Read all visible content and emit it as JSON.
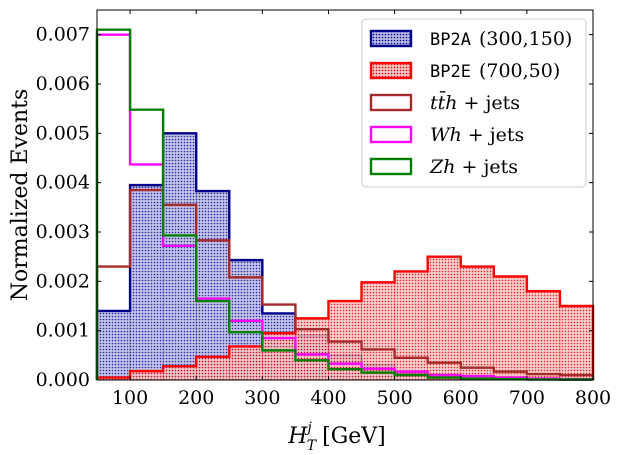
{
  "chart_data": {
    "type": "histogram",
    "xlabel": "H_T^j [GeV]",
    "xlabel_main": "H",
    "xlabel_sup": "j",
    "xlabel_sub": "T",
    "xlabel_unit": "[GeV]",
    "ylabel": "Normalized Events",
    "xlim": [
      50,
      800
    ],
    "ylim": [
      0,
      0.0075
    ],
    "xticks": [
      100,
      200,
      300,
      400,
      500,
      600,
      700,
      800
    ],
    "yticks": [
      0.0,
      0.001,
      0.002,
      0.003,
      0.004,
      0.005,
      0.006,
      0.007
    ],
    "ytick_labels": [
      "0.000",
      "0.001",
      "0.002",
      "0.003",
      "0.004",
      "0.005",
      "0.006",
      "0.007"
    ],
    "bin_edges": [
      50,
      100,
      150,
      200,
      250,
      300,
      350,
      400,
      450,
      500,
      550,
      600,
      650,
      700,
      750,
      800
    ],
    "legend_position": "top-right",
    "series": [
      {
        "name": "BP2A",
        "name_suffix": "(300,150)",
        "name_mono": true,
        "style": "filled-hatched",
        "color": "#00008b",
        "fill": "#8f8fcc",
        "values": [
          0.0014,
          0.00395,
          0.005,
          0.00383,
          0.00243,
          0.00135,
          0.0009,
          0.0005,
          0.0003,
          0.00015,
          8e-05,
          5e-05,
          3e-05,
          2e-05,
          1e-05
        ]
      },
      {
        "name": "BP2E",
        "name_suffix": "(700,50)",
        "name_mono": true,
        "style": "filled-hatched",
        "color": "#ff0000",
        "fill": "#f3a6a6",
        "values": [
          5e-05,
          0.00018,
          0.00028,
          0.00047,
          0.00068,
          0.00095,
          0.00125,
          0.0016,
          0.00198,
          0.0022,
          0.0025,
          0.0023,
          0.0021,
          0.0018,
          0.0015
        ]
      },
      {
        "name": "tt̄h + jets",
        "style": "step",
        "color": "#a52a2a",
        "values": [
          0.0023,
          0.00385,
          0.00355,
          0.00283,
          0.00208,
          0.00153,
          0.00103,
          0.00078,
          0.00062,
          0.00045,
          0.00035,
          0.00025,
          0.00017,
          0.00012,
          0.0001
        ]
      },
      {
        "name": "Wh + jets",
        "style": "step",
        "color": "#ff00ff",
        "values": [
          0.007,
          0.00437,
          0.00272,
          0.00165,
          0.0012,
          0.00085,
          0.00052,
          0.00033,
          0.00023,
          0.00017,
          0.0001,
          8e-05,
          5e-05,
          3e-05,
          2e-05
        ]
      },
      {
        "name": "Zh + jets",
        "style": "step",
        "color": "#008000",
        "values": [
          0.0071,
          0.00548,
          0.00293,
          0.0016,
          0.00097,
          0.0006,
          0.0004,
          0.00022,
          0.00015,
          0.0001,
          5e-05,
          3e-05,
          2e-05,
          1e-05,
          1e-05
        ]
      }
    ]
  }
}
